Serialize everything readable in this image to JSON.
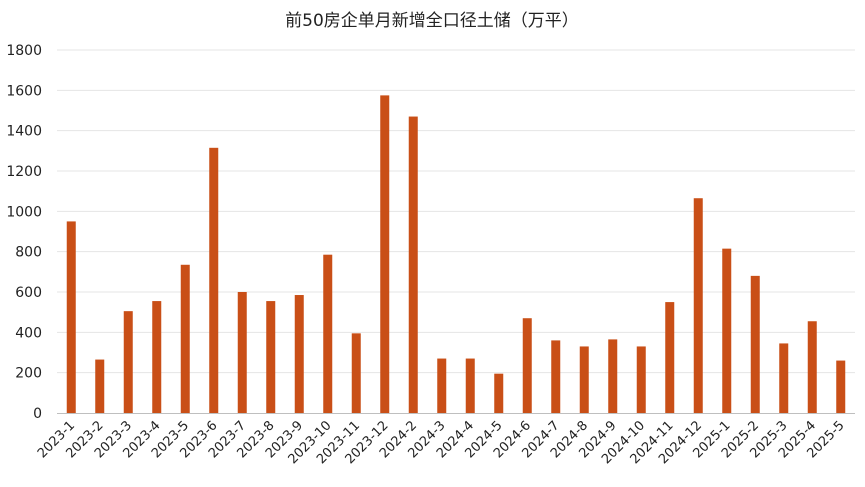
{
  "chart_data": {
    "type": "bar",
    "title": "前50房企单月新增全口径土储（万平）",
    "xlabel": "",
    "ylabel": "",
    "ylim": [
      0,
      1800
    ],
    "yticks": [
      0,
      200,
      400,
      600,
      800,
      1000,
      1200,
      1400,
      1600,
      1800
    ],
    "grid": "horizontal",
    "legend": "none",
    "bar_color": "#c94f17",
    "categories": [
      "2023-1",
      "2023-2",
      "2023-3",
      "2023-4",
      "2023-5",
      "2023-6",
      "2023-7",
      "2023-8",
      "2023-9",
      "2023-10",
      "2023-11",
      "2023-12",
      "2024-2",
      "2024-3",
      "2024-4",
      "2024-5",
      "2024-6",
      "2024-7",
      "2024-8",
      "2024-9",
      "2024-10",
      "2024-11",
      "2024-12",
      "2025-1",
      "2025-2",
      "2025-3",
      "2025-4",
      "2025-5"
    ],
    "values": [
      950,
      265,
      505,
      555,
      735,
      1315,
      600,
      555,
      585,
      785,
      395,
      1575,
      1470,
      270,
      270,
      195,
      470,
      360,
      330,
      365,
      330,
      550,
      1065,
      815,
      680,
      345,
      455,
      260
    ]
  }
}
